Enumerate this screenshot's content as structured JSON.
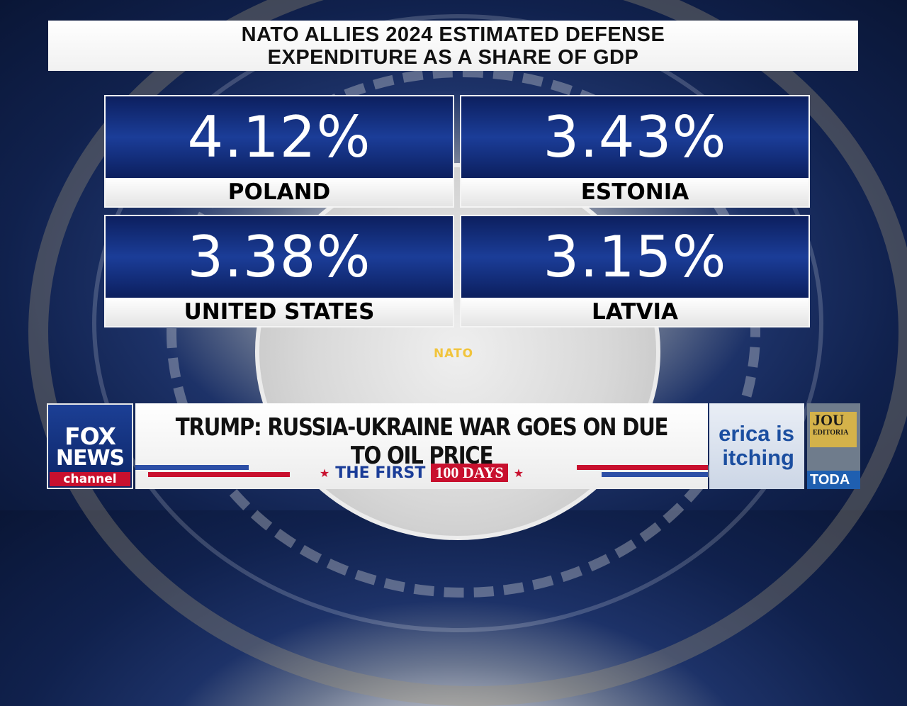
{
  "title": {
    "line1": "NATO ALLIES 2024 ESTIMATED DEFENSE",
    "line2": "EXPENDITURE AS A SHARE OF GDP"
  },
  "cards": [
    {
      "value": "4.12%",
      "label": "POLAND"
    },
    {
      "value": "3.43%",
      "label": "ESTONIA"
    },
    {
      "value": "3.38%",
      "label": "UNITED STATES"
    },
    {
      "value": "3.15%",
      "label": "LATVIA"
    }
  ],
  "background_bug": "NATO",
  "network": {
    "line1": "FOX",
    "line2": "NEWS",
    "line3": "channel"
  },
  "headline": "TRUMP: RUSSIA-UKRAINE WAR GOES ON DUE TO OIL PRICE",
  "show": {
    "star": "★",
    "prefix": "THE FIRST",
    "highlight": "100 DAYS"
  },
  "promo_america": {
    "line1": "erica is",
    "line2": "itching"
  },
  "promo_journal": {
    "top": "JOU",
    "sub": "EDITORIA",
    "bottom": "TODA"
  },
  "colors": {
    "card_blue": "#1b3d98",
    "fox_red": "#c8102e",
    "bug_gold": "#f1c43c"
  }
}
